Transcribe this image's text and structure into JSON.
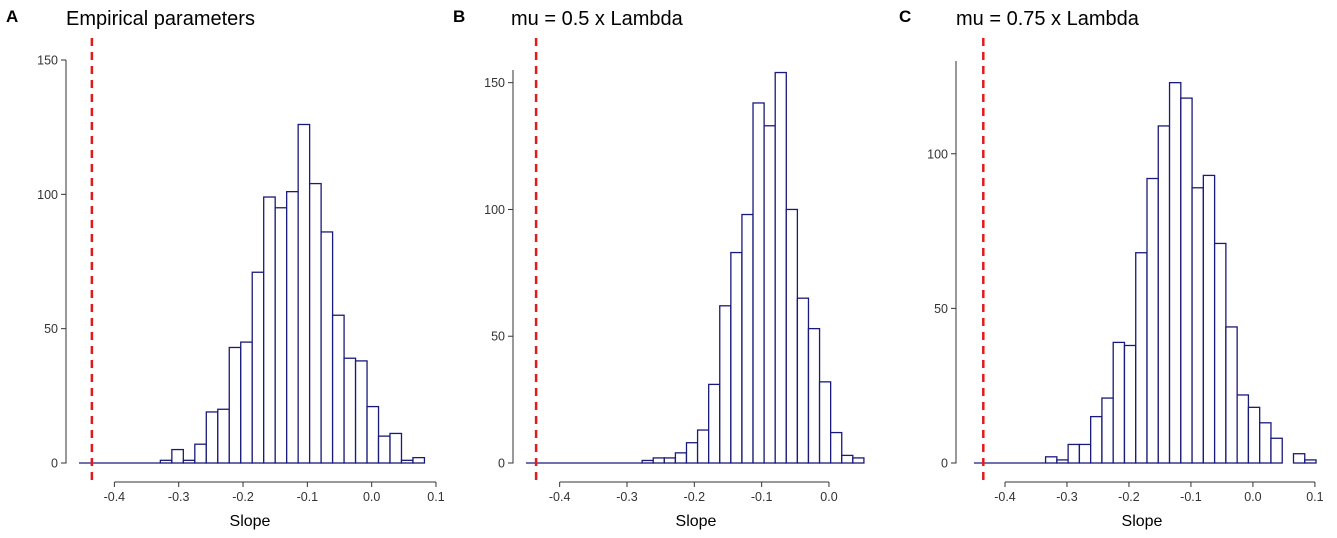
{
  "colors": {
    "bar_stroke": "#1a1a7a",
    "bar_fill": "#ffffff",
    "ref_line": "#e31a1c",
    "axis": "#333333"
  },
  "chart_data": [
    {
      "panel": "A",
      "type": "bar",
      "title": "Empirical parameters",
      "xlabel": "Slope",
      "ylabel": "",
      "xlim": [
        -0.455,
        0.1
      ],
      "ylim": [
        0,
        150
      ],
      "xticks": [
        -0.4,
        -0.3,
        -0.2,
        -0.1,
        0.0,
        0.1
      ],
      "xtick_labels": [
        "-0.4",
        "-0.3",
        "-0.2",
        "-0.1",
        "0.0",
        "0.1"
      ],
      "yticks": [
        0,
        50,
        100,
        150
      ],
      "ytick_labels": [
        "0",
        "50",
        "100",
        "150"
      ],
      "bin_width": 0.01785,
      "bins_start": -0.3285,
      "line_from": -0.455,
      "ref_line_x": -0.435,
      "values": [
        1,
        5,
        1,
        7,
        19,
        20,
        43,
        45,
        71,
        99,
        95,
        101,
        126,
        104,
        86,
        55,
        39,
        38,
        21,
        10,
        11,
        1,
        2
      ],
      "grid": false,
      "legend": "none"
    },
    {
      "panel": "B",
      "type": "bar",
      "title": "mu = 0.5 x Lambda",
      "xlabel": "Slope",
      "ylabel": "",
      "xlim": [
        -0.45,
        0.055
      ],
      "ylim": [
        0,
        155
      ],
      "xticks": [
        -0.4,
        -0.3,
        -0.2,
        -0.1,
        0.0
      ],
      "xtick_labels": [
        "-0.4",
        "-0.3",
        "-0.2",
        "-0.1",
        "0.0"
      ],
      "yticks": [
        0,
        50,
        100,
        150
      ],
      "ytick_labels": [
        "0",
        "50",
        "100",
        "150"
      ],
      "bin_width": 0.01647,
      "bins_start": -0.2775,
      "line_from": -0.45,
      "ref_line_x": -0.435,
      "values": [
        1,
        2,
        2,
        4,
        8,
        13,
        31,
        62,
        83,
        98,
        142,
        133,
        154,
        100,
        65,
        53,
        32,
        12,
        3,
        2
      ],
      "grid": false,
      "legend": "none"
    },
    {
      "panel": "C",
      "type": "bar",
      "title": "mu = 0.75 x Lambda",
      "xlabel": "Slope",
      "ylabel": "",
      "xlim": [
        -0.45,
        0.105
      ],
      "ylim": [
        0,
        130
      ],
      "xticks": [
        -0.4,
        -0.3,
        -0.2,
        -0.1,
        0.0,
        0.1
      ],
      "xtick_labels": [
        "-0.4",
        "-0.3",
        "-0.2",
        "-0.1",
        "0.0",
        "0.1"
      ],
      "yticks": [
        0,
        50,
        100
      ],
      "ytick_labels": [
        "0",
        "50",
        "100"
      ],
      "bin_width": 0.01818,
      "bins_start": -0.3345,
      "line_from": -0.45,
      "ref_line_x": -0.435,
      "values": [
        2,
        1,
        6,
        6,
        15,
        21,
        39,
        38,
        68,
        92,
        109,
        123,
        118,
        89,
        93,
        71,
        44,
        22,
        18,
        13,
        8,
        0,
        3,
        1
      ],
      "grid": false,
      "legend": "none"
    }
  ]
}
